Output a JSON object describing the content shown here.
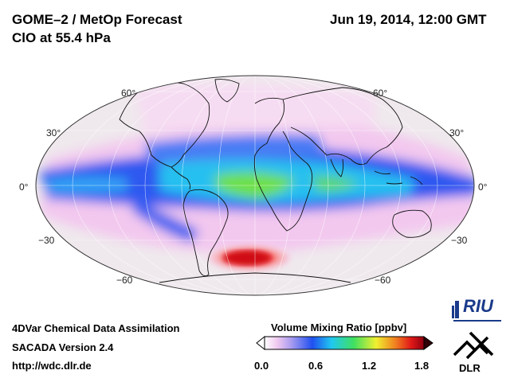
{
  "header": {
    "title_line1": "GOME–2 / MetOp Forecast",
    "title_line2": "ClO at 55.4 hPa",
    "date": "Jun 19, 2014, 12:00 GMT"
  },
  "map": {
    "projection": "Mollweide",
    "lat_labels_left": [
      "60°",
      "30°",
      "0°",
      "−30",
      "−60"
    ],
    "lat_labels_right": [
      "60°",
      "30°",
      "0°",
      "−30",
      "−60"
    ],
    "colors": {
      "background": "#eee8ec",
      "low": "#f2c8ee",
      "blue": "#2a5cf0",
      "cyan": "#20c8f0",
      "green": "#70e040",
      "yellow": "#f8f030",
      "red": "#e01818"
    }
  },
  "footer": {
    "line1": "4DVar Chemical Data Assimilation",
    "line2": "SACADA Version 2.4",
    "line3": "http://wdc.dlr.de"
  },
  "colorbar": {
    "title": "Volume Mixing Ratio [ppbv]",
    "ticks": [
      "0.0",
      "0.6",
      "1.2",
      "1.8"
    ]
  },
  "logos": {
    "riu_text": "RIU",
    "dlr_text": "DLR"
  }
}
